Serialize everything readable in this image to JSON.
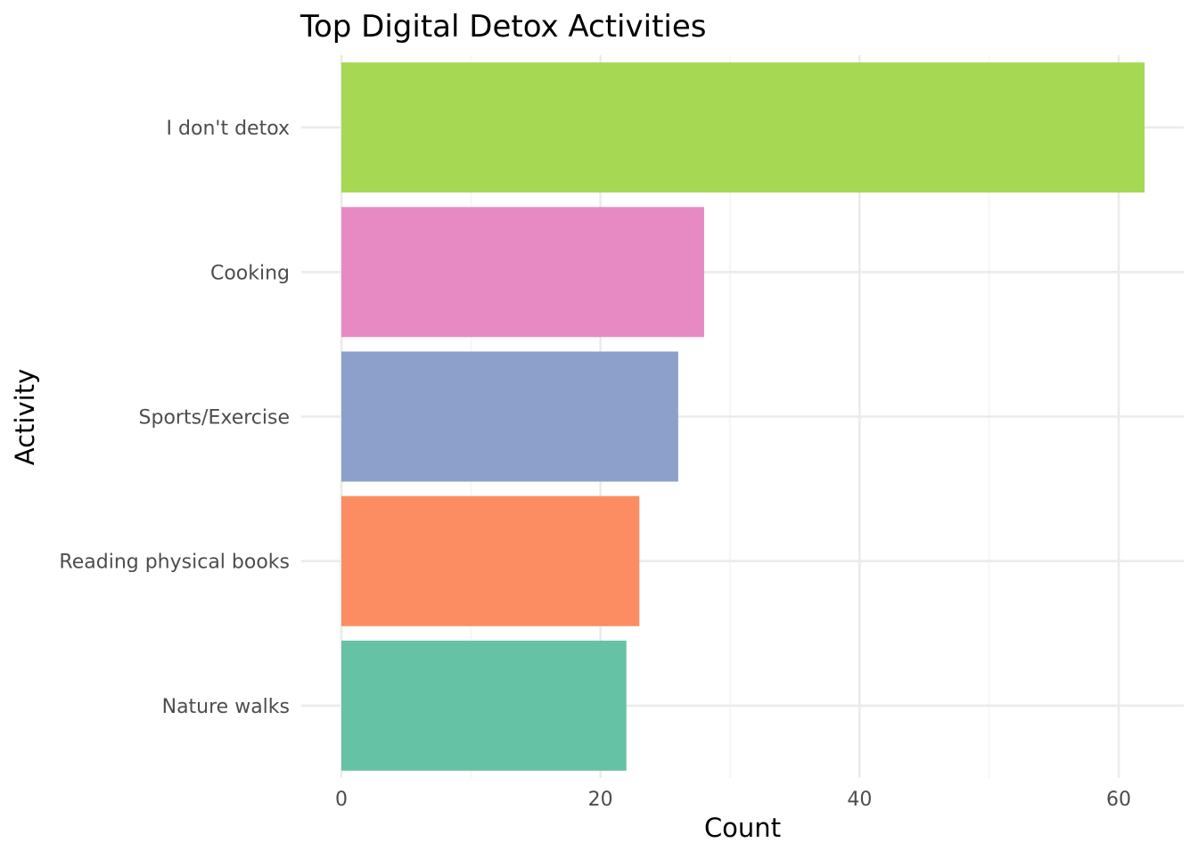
{
  "chart_data": {
    "type": "bar",
    "orientation": "horizontal",
    "title": "Top Digital Detox Activities",
    "xlabel": "Count",
    "ylabel": "Activity",
    "categories": [
      "I don't detox",
      "Cooking",
      "Sports/Exercise",
      "Reading physical books",
      "Nature walks"
    ],
    "values": [
      62,
      28,
      26,
      23,
      22
    ],
    "colors": [
      "#a6d854",
      "#e78ac3",
      "#8da0cb",
      "#fc8d62",
      "#66c2a5"
    ],
    "xlim": [
      0,
      65
    ],
    "xticks": [
      0,
      20,
      40,
      60
    ],
    "xtick_labels": [
      "0",
      "20",
      "40",
      "60"
    ],
    "grid": true,
    "legend": "none"
  }
}
